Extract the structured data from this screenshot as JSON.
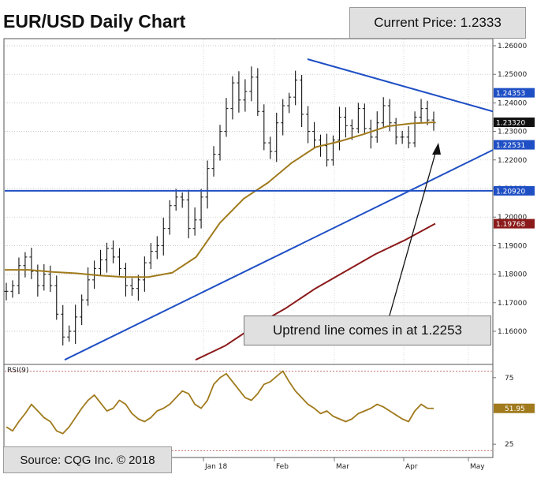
{
  "title": "EUR/USD Daily Chart",
  "current_price_label": "Current Price: 1.2333",
  "callout_text": "Uptrend line comes in at 1.2253",
  "source_text": "Source: CQG Inc. © 2018",
  "rsi_label": "RSI(9)",
  "colors": {
    "candles": "#111111",
    "ma_fast": "#a07a1c",
    "ma_slow": "#8b1a1a",
    "trendlines": "#1f4fc4",
    "rsi": "#a07a1c",
    "rsi_guides": "#c06060"
  },
  "chart_data": [
    {
      "type": "line",
      "title": "EUR/USD Daily Chart",
      "x_tick_labels": [
        "Jan 18",
        "Feb",
        "Mar",
        "Apr",
        "May"
      ],
      "y_tick_labels": [
        "1.26000",
        "1.25000",
        "1.24000",
        "1.23000",
        "1.22000",
        "1.21000",
        "1.20000",
        "1.19000",
        "1.18000",
        "1.17000",
        "1.16000"
      ],
      "ylim": [
        1.151,
        1.2615
      ],
      "price_tags": [
        "1.24353",
        "1.23320",
        "1.22531",
        "1.20920",
        "1.19768"
      ],
      "candles": {
        "x_range": [
          "2017-11-15",
          "2018-04-24"
        ],
        "approx_closes": [
          1.174,
          1.176,
          1.183,
          1.186,
          1.181,
          1.176,
          1.18,
          1.176,
          1.166,
          1.158,
          1.16,
          1.165,
          1.171,
          1.178,
          1.182,
          1.185,
          1.189,
          1.186,
          1.182,
          1.176,
          1.175,
          1.178,
          1.184,
          1.188,
          1.19,
          1.196,
          1.204,
          1.207,
          1.206,
          1.196,
          1.199,
          1.207,
          1.217,
          1.222,
          1.23,
          1.238,
          1.247,
          1.241,
          1.244,
          1.249,
          1.237,
          1.226,
          1.223,
          1.233,
          1.239,
          1.242,
          1.248,
          1.236,
          1.23,
          1.227,
          1.225,
          1.22,
          1.227,
          1.235,
          1.232,
          1.231,
          1.238,
          1.231,
          1.228,
          1.233,
          1.239,
          1.233,
          1.228,
          1.228,
          1.226,
          1.235,
          1.238,
          1.234,
          1.233
        ]
      },
      "series": [
        {
          "name": "1.23320",
          "approx_values": [
            1.1815,
            1.1815,
            1.1808,
            1.1803,
            1.1795,
            1.179,
            1.179,
            1.1805,
            1.186,
            1.198,
            1.2065,
            1.212,
            1.219,
            1.2245,
            1.2265,
            1.229,
            1.2318,
            1.2328,
            1.2332
          ]
        },
        {
          "name": "1.19768",
          "approx_values": [
            1.15,
            1.155,
            1.162,
            1.168,
            1.175,
            1.181,
            1.187,
            1.192,
            1.1977
          ]
        }
      ],
      "trendlines": [
        {
          "name": "Uptrend line",
          "from": [
            1.15
          ],
          "to": [
            1.2253
          ]
        },
        {
          "name": "Downtrend line",
          "from": [
            1.2555
          ],
          "to": [
            1.237
          ]
        },
        {
          "name": "Horizontal support",
          "level": 1.2092
        }
      ]
    },
    {
      "type": "line",
      "title": "RSI(9)",
      "ylim": [
        15,
        85
      ],
      "y_tick_labels": [
        "75",
        "25"
      ],
      "reference_levels": [
        80,
        20
      ],
      "current_value_label": "51.95",
      "approx_values": [
        38,
        35,
        42,
        48,
        55,
        50,
        45,
        42,
        35,
        33,
        38,
        45,
        52,
        58,
        62,
        56,
        50,
        52,
        58,
        55,
        48,
        44,
        42,
        45,
        50,
        52,
        55,
        60,
        65,
        63,
        55,
        52,
        58,
        70,
        75,
        78,
        72,
        66,
        60,
        58,
        63,
        70,
        72,
        76,
        80,
        72,
        65,
        60,
        55,
        52,
        48,
        50,
        46,
        44,
        42,
        44,
        48,
        50,
        52,
        55,
        53,
        50,
        47,
        44,
        42,
        50,
        55,
        52,
        51.95
      ]
    }
  ]
}
